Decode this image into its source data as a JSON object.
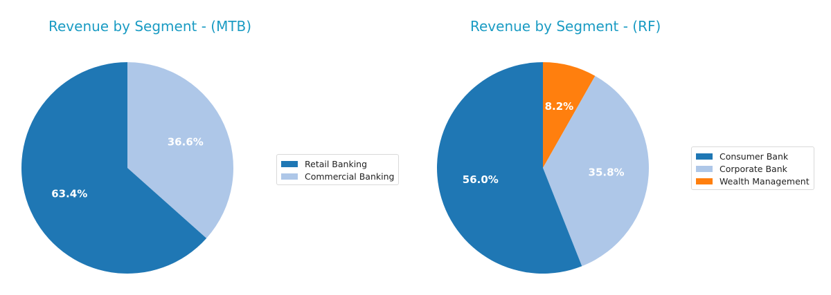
{
  "chart_data": [
    {
      "type": "pie",
      "title": "Revenue by Segment - (MTB)",
      "categories": [
        "Retail Banking",
        "Commercial Banking"
      ],
      "values": [
        63.4,
        36.6
      ],
      "labels": [
        "63.4%",
        "36.6%"
      ],
      "colors": [
        "#1f77b4",
        "#aec7e8"
      ],
      "start_angle": 90,
      "direction": "clockwise",
      "legend_position": "right"
    },
    {
      "type": "pie",
      "title": "Revenue by Segment - (RF)",
      "categories": [
        "Consumer Bank",
        "Corporate Bank",
        "Wealth Management"
      ],
      "values": [
        56.0,
        35.8,
        8.2
      ],
      "labels": [
        "56.0%",
        "35.8%",
        "8.2%"
      ],
      "colors": [
        "#1f77b4",
        "#aec7e8",
        "#ff7f0e"
      ],
      "start_angle": 90,
      "direction": "clockwise",
      "legend_position": "right"
    }
  ],
  "charts": [
    {
      "title": "Revenue by Segment - (MTB)",
      "legend": [
        {
          "label": "Retail Banking",
          "color": "#1f77b4"
        },
        {
          "label": "Commercial Banking",
          "color": "#aec7e8"
        }
      ]
    },
    {
      "title": "Revenue by Segment - (RF)",
      "legend": [
        {
          "label": "Consumer Bank",
          "color": "#1f77b4"
        },
        {
          "label": "Corporate Bank",
          "color": "#aec7e8"
        },
        {
          "label": "Wealth Management",
          "color": "#ff7f0e"
        }
      ]
    }
  ]
}
